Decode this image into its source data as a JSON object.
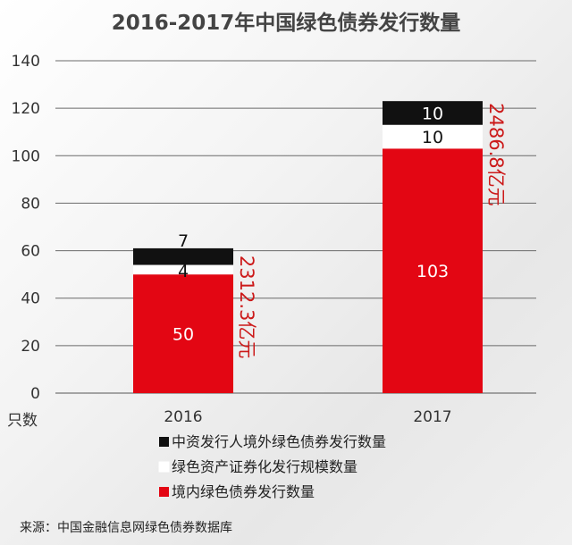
{
  "chart_data": {
    "type": "bar",
    "stacked": true,
    "title": "2016-2017年中国绿色债券发行数量",
    "ylabel": "只数",
    "ylim": [
      0,
      140
    ],
    "yticks": [
      0,
      20,
      40,
      60,
      80,
      100,
      120,
      140
    ],
    "grid": true,
    "categories": [
      "2016",
      "2017"
    ],
    "series": [
      {
        "name": "境内绿色债券发行数量",
        "values": [
          50,
          103
        ],
        "color": "#e30613",
        "label_color": "#ffffff"
      },
      {
        "name": "绿色资产证券化发行规模数量",
        "values": [
          4,
          10
        ],
        "color": "#ffffff",
        "label_color": "#111111"
      },
      {
        "name": "中资发行人境外绿色债券发行数量",
        "values": [
          7,
          10
        ],
        "color": "#111111",
        "label_color": "#ffffff"
      }
    ],
    "annotations": [
      "2312.3亿元",
      "2486.8亿元"
    ],
    "legend_order": [
      2,
      1,
      0
    ],
    "legend_position": "bottom",
    "source": "来源：中国金融信息网绿色债券数据库"
  }
}
